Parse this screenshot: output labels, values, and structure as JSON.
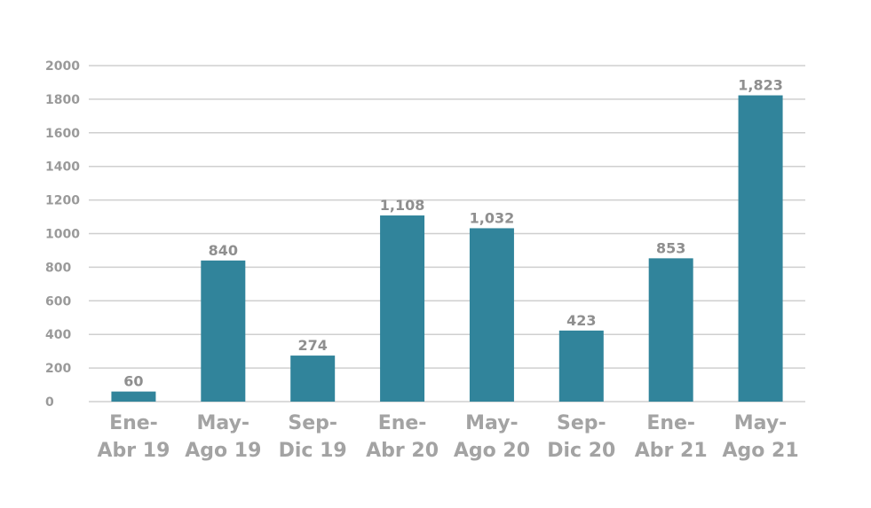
{
  "chart_data": {
    "type": "bar",
    "title": "",
    "xlabel": "",
    "ylabel": "",
    "ylim": [
      0,
      2000
    ],
    "yticks": [
      0,
      200,
      400,
      600,
      800,
      1000,
      1200,
      1400,
      1600,
      1800,
      2000
    ],
    "grid": true,
    "categories": [
      [
        "Ene-",
        "Abr 19"
      ],
      [
        "May-",
        "Ago 19"
      ],
      [
        "Sep-",
        "Dic 19"
      ],
      [
        "Ene-",
        "Abr 20"
      ],
      [
        "May-",
        "Ago 20"
      ],
      [
        "Sep-",
        "Dic 20"
      ],
      [
        "Ene-",
        "Abr 21"
      ],
      [
        "May-",
        "Ago 21"
      ]
    ],
    "values": [
      60,
      840,
      274,
      1108,
      1032,
      423,
      853,
      1823
    ],
    "data_labels": [
      "60",
      "840",
      "274",
      "1,108",
      "1,032",
      "423",
      "853",
      "1,823"
    ],
    "bar_color": "#31849b"
  }
}
